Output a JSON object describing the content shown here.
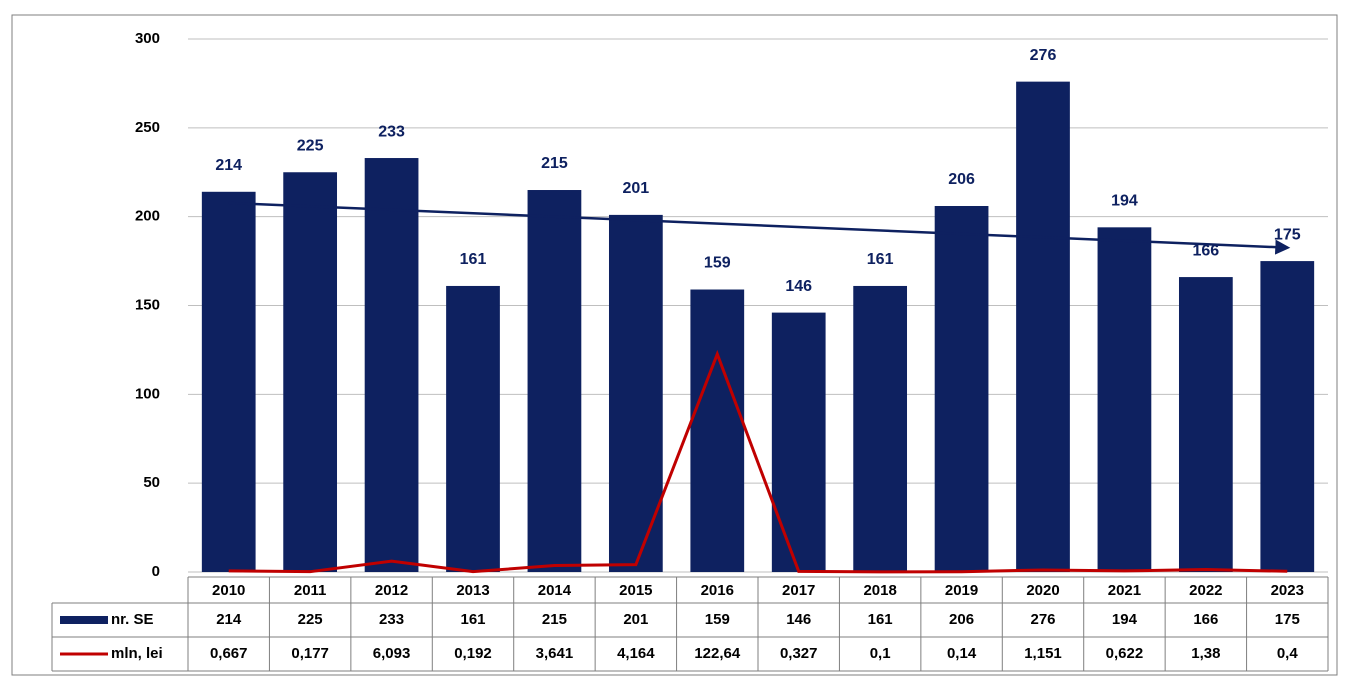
{
  "chart_data": {
    "type": "bar",
    "categories": [
      "2010",
      "2011",
      "2012",
      "2013",
      "2014",
      "2015",
      "2016",
      "2017",
      "2018",
      "2019",
      "2020",
      "2021",
      "2022",
      "2023"
    ],
    "series": [
      {
        "name": "nr. SE",
        "type": "bar",
        "color": "#0e2160",
        "values": [
          214,
          225,
          233,
          161,
          215,
          201,
          159,
          146,
          161,
          206,
          276,
          194,
          166,
          175
        ]
      },
      {
        "name": "mln, lei",
        "type": "line",
        "color": "#c00000",
        "values": [
          0.667,
          0.177,
          6.093,
          0.192,
          3.641,
          4.164,
          122.64,
          0.327,
          0.1,
          0.14,
          1.151,
          0.622,
          1.38,
          0.4
        ],
        "value_labels": [
          "0,667",
          "0,177",
          "6,093",
          "0,192",
          "3,641",
          "4,164",
          "122,64",
          "0,327",
          "0,1",
          "0,14",
          "1,151",
          "0,622",
          "1,38",
          "0,4"
        ]
      }
    ],
    "ylim": [
      0,
      300
    ],
    "yticks": [
      0,
      50,
      100,
      150,
      200,
      250,
      300
    ],
    "grid": true,
    "trendline": true,
    "data_table": true
  }
}
